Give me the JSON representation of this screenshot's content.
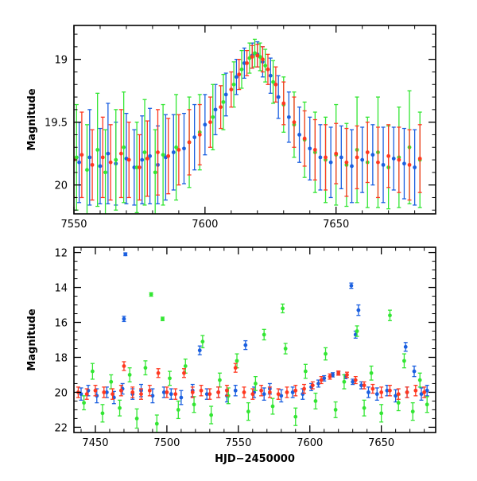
{
  "chart_data": [
    {
      "type": "scatter",
      "panel": "top",
      "title": "",
      "xlabel": "",
      "ylabel": "Magnitude",
      "xlim": [
        7550,
        7688
      ],
      "ylim": [
        20.23,
        18.73
      ],
      "y_inverted": true,
      "xticks": [
        7550,
        7600,
        7650
      ],
      "yticks": [
        19,
        19.5,
        20
      ],
      "xtick_labels": [
        "7550",
        "7600",
        "7650"
      ],
      "ytick_labels": [
        "19",
        "19.5",
        "20"
      ],
      "grid": false,
      "legend": "none",
      "series": [
        {
          "color": "#1a5fe0",
          "x": [
            7552,
            7556,
            7560,
            7563,
            7566,
            7570,
            7573,
            7576,
            7579,
            7582,
            7585,
            7588,
            7592,
            7596,
            7600,
            7604,
            7608,
            7612,
            7615,
            7618,
            7620,
            7622,
            7625,
            7628,
            7632,
            7636,
            7640,
            7644,
            7648,
            7652,
            7656,
            7660,
            7664,
            7668,
            7672,
            7676,
            7680
          ],
          "y": [
            19.82,
            19.78,
            19.85,
            19.75,
            19.83,
            19.79,
            19.86,
            19.8,
            19.77,
            19.84,
            19.78,
            19.74,
            19.71,
            19.62,
            19.52,
            19.4,
            19.28,
            19.14,
            19.03,
            18.97,
            18.96,
            19.02,
            19.13,
            19.3,
            19.46,
            19.6,
            19.71,
            19.78,
            19.82,
            19.78,
            19.85,
            19.8,
            19.76,
            19.84,
            19.79,
            19.83,
            19.86
          ],
          "yerr": [
            0.32,
            0.38,
            0.3,
            0.4,
            0.33,
            0.36,
            0.3,
            0.35,
            0.38,
            0.31,
            0.34,
            0.3,
            0.28,
            0.26,
            0.24,
            0.2,
            0.17,
            0.14,
            0.12,
            0.1,
            0.1,
            0.12,
            0.14,
            0.17,
            0.2,
            0.22,
            0.25,
            0.26,
            0.28,
            0.25,
            0.29,
            0.26,
            0.24,
            0.3,
            0.25,
            0.28,
            0.3
          ]
        },
        {
          "color": "#33e633",
          "x": [
            7551,
            7555,
            7559,
            7562,
            7566,
            7569,
            7574,
            7577,
            7581,
            7584,
            7589,
            7594,
            7598,
            7603,
            7607,
            7611,
            7614,
            7617,
            7619,
            7621,
            7623,
            7626,
            7630,
            7634,
            7638,
            7642,
            7646,
            7650,
            7654,
            7658,
            7662,
            7666,
            7670,
            7674,
            7678,
            7682
          ],
          "y": [
            19.78,
            19.88,
            19.72,
            19.9,
            19.8,
            19.7,
            19.86,
            19.74,
            19.9,
            19.76,
            19.7,
            19.66,
            19.58,
            19.46,
            19.34,
            19.2,
            19.08,
            18.99,
            18.95,
            18.98,
            19.05,
            19.18,
            19.36,
            19.52,
            19.64,
            19.74,
            19.8,
            19.76,
            19.84,
            19.72,
            19.82,
            19.74,
            19.86,
            19.78,
            19.7,
            19.8
          ],
          "yerr": [
            0.42,
            0.36,
            0.45,
            0.34,
            0.4,
            0.44,
            0.36,
            0.42,
            0.34,
            0.4,
            0.42,
            0.36,
            0.3,
            0.26,
            0.22,
            0.18,
            0.15,
            0.12,
            0.11,
            0.11,
            0.13,
            0.17,
            0.22,
            0.26,
            0.3,
            0.32,
            0.34,
            0.4,
            0.33,
            0.42,
            0.36,
            0.44,
            0.33,
            0.4,
            0.45,
            0.38
          ]
        },
        {
          "color": "#ff3820",
          "x": [
            7550,
            7553,
            7557,
            7561,
            7564,
            7568,
            7571,
            7575,
            7578,
            7582,
            7586,
            7590,
            7594,
            7598,
            7602,
            7606,
            7610,
            7613,
            7616,
            7618,
            7620,
            7622,
            7624,
            7627,
            7630,
            7634,
            7638,
            7642,
            7646,
            7650,
            7654,
            7658,
            7662,
            7666,
            7670,
            7674,
            7678,
            7682
          ],
          "y": [
            19.8,
            19.76,
            19.84,
            19.78,
            19.82,
            19.75,
            19.8,
            19.86,
            19.79,
            19.74,
            19.77,
            19.72,
            19.66,
            19.6,
            19.5,
            19.38,
            19.24,
            19.12,
            19.03,
            18.98,
            18.97,
            19.0,
            19.08,
            19.2,
            19.35,
            19.5,
            19.63,
            19.72,
            19.78,
            19.75,
            19.82,
            19.78,
            19.74,
            19.82,
            19.77,
            19.8,
            19.84,
            19.79
          ],
          "yerr": [
            0.3,
            0.34,
            0.28,
            0.32,
            0.3,
            0.35,
            0.3,
            0.26,
            0.3,
            0.34,
            0.3,
            0.28,
            0.26,
            0.24,
            0.2,
            0.17,
            0.14,
            0.12,
            0.1,
            0.09,
            0.09,
            0.1,
            0.12,
            0.14,
            0.17,
            0.2,
            0.22,
            0.24,
            0.26,
            0.24,
            0.27,
            0.25,
            0.24,
            0.28,
            0.25,
            0.26,
            0.28,
            0.27
          ]
        }
      ]
    },
    {
      "type": "scatter",
      "panel": "bottom",
      "title": "",
      "xlabel": "HJD−2450000",
      "ylabel": "Magnitude",
      "xlim": [
        7435,
        7688
      ],
      "ylim": [
        22.3,
        11.7
      ],
      "y_inverted": true,
      "xticks": [
        7450,
        7500,
        7550,
        7600,
        7650
      ],
      "yticks": [
        12,
        14,
        16,
        18,
        20,
        22
      ],
      "xtick_labels": [
        "7450",
        "7500",
        "7550",
        "7600",
        "7650"
      ],
      "ytick_labels": [
        "12",
        "14",
        "16",
        "18",
        "20",
        "22"
      ],
      "grid": false,
      "legend": "none",
      "series": [
        {
          "color": "#1a5fe0",
          "x": [
            7440,
            7445,
            7451,
            7458,
            7463,
            7469,
            7471,
            7476,
            7482,
            7490,
            7498,
            7503,
            7510,
            7518,
            7523,
            7528,
            7536,
            7542,
            7548,
            7555,
            7561,
            7568,
            7572,
            7580,
            7588,
            7595,
            7601,
            7606,
            7610,
            7616,
            7620,
            7625,
            7629,
            7630,
            7634,
            7636,
            7641,
            7647,
            7654,
            7660,
            7668,
            7673,
            7678,
            7682
          ],
          "y": [
            20.1,
            19.9,
            20.2,
            20.0,
            20.3,
            19.8,
            12.1,
            20.1,
            19.9,
            20.2,
            20.0,
            20.1,
            20.3,
            19.9,
            17.6,
            20.1,
            20.0,
            20.2,
            19.9,
            17.3,
            20.0,
            20.1,
            19.8,
            20.2,
            20.0,
            20.1,
            19.7,
            19.5,
            19.2,
            19.0,
            18.9,
            19.1,
            13.9,
            19.4,
            15.3,
            19.6,
            20.0,
            20.1,
            19.9,
            20.2,
            20.0,
            18.8,
            20.1,
            19.9
          ],
          "yerr": [
            0.35,
            0.3,
            0.4,
            0.3,
            0.35,
            0.3,
            0.08,
            0.3,
            0.35,
            0.4,
            0.3,
            0.3,
            0.4,
            0.35,
            0.25,
            0.3,
            0.3,
            0.35,
            0.3,
            0.25,
            0.3,
            0.35,
            0.3,
            0.35,
            0.3,
            0.3,
            0.2,
            0.2,
            0.15,
            0.12,
            0.1,
            0.12,
            0.15,
            0.15,
            0.3,
            0.2,
            0.3,
            0.35,
            0.3,
            0.35,
            0.3,
            0.3,
            0.35,
            0.3
          ]
        },
        {
          "color": "#1a5fe0",
          "x": [
            7470,
            7632,
            7667
          ],
          "y": [
            15.8,
            16.7,
            17.4
          ],
          "yerr": [
            0.15,
            0.2,
            0.25
          ]
        },
        {
          "color": "#33e633",
          "x": [
            7442,
            7448,
            7455,
            7461,
            7467,
            7474,
            7479,
            7485,
            7489,
            7493,
            7497,
            7502,
            7508,
            7513,
            7519,
            7525,
            7531,
            7537,
            7543,
            7549,
            7557,
            7562,
            7568,
            7574,
            7581,
            7583,
            7590,
            7597,
            7604,
            7611,
            7618,
            7624,
            7633,
            7638,
            7643,
            7650,
            7656,
            7662,
            7666,
            7672,
            7677,
            7682
          ],
          "y": [
            20.6,
            18.8,
            21.2,
            19.4,
            20.9,
            19.0,
            21.5,
            18.6,
            14.4,
            21.8,
            15.8,
            19.2,
            21.0,
            18.5,
            20.7,
            17.1,
            21.3,
            19.3,
            20.2,
            18.2,
            21.1,
            19.5,
            16.7,
            20.8,
            15.2,
            17.5,
            21.4,
            18.8,
            20.5,
            17.8,
            21.0,
            19.4,
            16.5,
            20.9,
            18.9,
            21.2,
            15.6,
            20.6,
            18.2,
            21.1,
            19.3,
            20.7
          ],
          "yerr": [
            0.4,
            0.45,
            0.5,
            0.4,
            0.45,
            0.4,
            0.55,
            0.4,
            0.1,
            0.5,
            0.1,
            0.4,
            0.5,
            0.4,
            0.45,
            0.35,
            0.5,
            0.4,
            0.45,
            0.4,
            0.5,
            0.4,
            0.3,
            0.45,
            0.25,
            0.3,
            0.5,
            0.4,
            0.45,
            0.35,
            0.45,
            0.4,
            0.3,
            0.45,
            0.4,
            0.5,
            0.3,
            0.45,
            0.4,
            0.5,
            0.4,
            0.45
          ]
        },
        {
          "color": "#ff3820",
          "x": [
            7438,
            7444,
            7450,
            7456,
            7462,
            7468,
            7470,
            7476,
            7482,
            7488,
            7494,
            7500,
            7506,
            7512,
            7518,
            7524,
            7530,
            7536,
            7542,
            7548,
            7554,
            7560,
            7566,
            7572,
            7578,
            7584,
            7590,
            7596,
            7602,
            7608,
            7614,
            7620,
            7626,
            7632,
            7638,
            7644,
            7650,
            7656,
            7662,
            7668,
            7674,
            7680
          ],
          "y": [
            20.0,
            20.1,
            19.9,
            20.0,
            20.1,
            19.9,
            18.5,
            20.0,
            20.1,
            19.9,
            18.9,
            20.0,
            20.1,
            18.9,
            20.0,
            19.9,
            20.1,
            20.0,
            19.9,
            18.6,
            20.0,
            20.1,
            19.9,
            20.0,
            20.1,
            20.0,
            19.9,
            19.8,
            19.6,
            19.3,
            19.1,
            18.9,
            19.0,
            19.3,
            19.6,
            19.8,
            20.0,
            19.9,
            20.1,
            20.0,
            19.9,
            20.0
          ],
          "yerr": [
            0.3,
            0.3,
            0.3,
            0.3,
            0.3,
            0.3,
            0.25,
            0.3,
            0.3,
            0.3,
            0.25,
            0.3,
            0.3,
            0.25,
            0.3,
            0.3,
            0.3,
            0.3,
            0.3,
            0.25,
            0.3,
            0.3,
            0.3,
            0.3,
            0.3,
            0.3,
            0.3,
            0.25,
            0.2,
            0.2,
            0.15,
            0.12,
            0.15,
            0.2,
            0.2,
            0.25,
            0.3,
            0.3,
            0.3,
            0.3,
            0.3,
            0.3
          ]
        }
      ]
    }
  ]
}
